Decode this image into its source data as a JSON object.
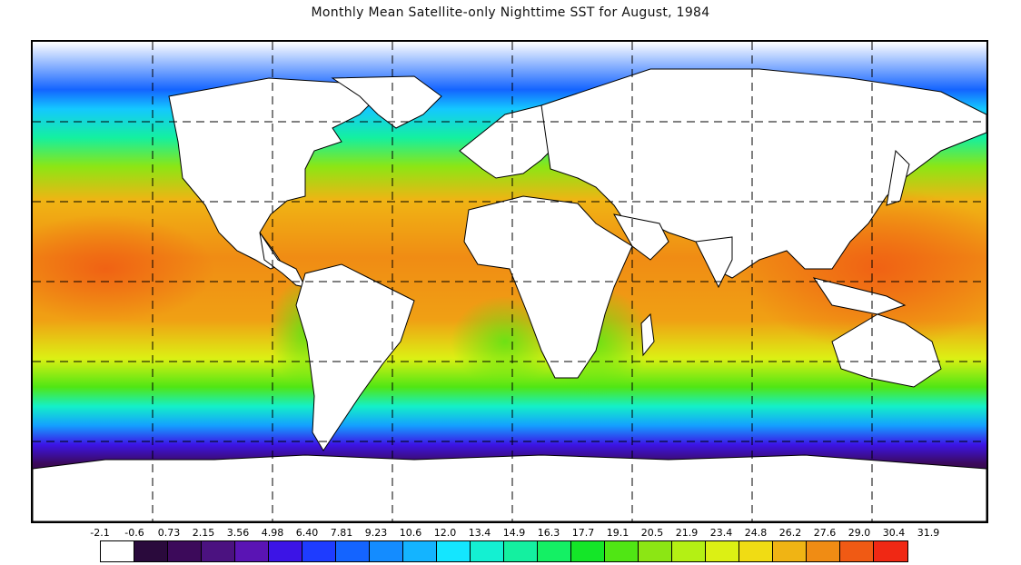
{
  "title": "Monthly Mean Satellite-only Nighttime SST for August, 1984",
  "map": {
    "type": "sea-surface-temperature",
    "projection": "equirectangular",
    "gridlines": "dashed",
    "land_color": "#ffffff",
    "coastline_color": "#000000"
  },
  "legend": {
    "labels": [
      "-2.1",
      "-0.6",
      "0.73",
      "2.15",
      "3.56",
      "4.98",
      "6.40",
      "7.81",
      "9.23",
      "10.6",
      "12.0",
      "13.4",
      "14.9",
      "16.3",
      "17.7",
      "19.1",
      "20.5",
      "21.9",
      "23.4",
      "24.8",
      "26.2",
      "27.6",
      "29.0",
      "30.4",
      "31.9"
    ],
    "colors": [
      "#ffffff",
      "#2a0a3c",
      "#3c0a5a",
      "#4b1280",
      "#5a14b4",
      "#3c14e6",
      "#1e3cff",
      "#1464ff",
      "#148cff",
      "#14b4ff",
      "#14e6ff",
      "#14f0d2",
      "#14f0a0",
      "#14f064",
      "#14e628",
      "#50e614",
      "#8ce614",
      "#b4f014",
      "#dcf014",
      "#f0dc14",
      "#f0b414",
      "#f08c14",
      "#f05a14",
      "#f02814"
    ]
  }
}
